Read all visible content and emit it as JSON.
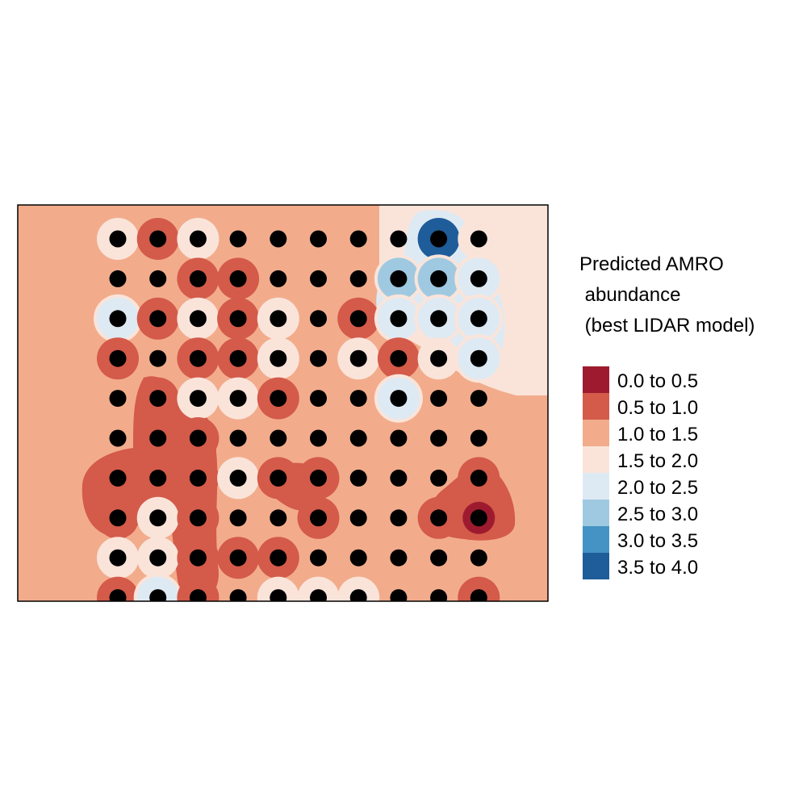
{
  "chart_data": {
    "type": "heatmap",
    "subtype": "interpolated abundance map with survey points",
    "title": "",
    "legend": {
      "placement": "right",
      "title_lines": [
        "Predicted AMRO",
        " abundance",
        " (best LIDAR model)"
      ],
      "classes": [
        {
          "label": "0.0 to 0.5",
          "min": 0.0,
          "max": 0.5,
          "color": "#9E1B2F"
        },
        {
          "label": "0.5 to 1.0",
          "min": 0.5,
          "max": 1.0,
          "color": "#D45A4A"
        },
        {
          "label": "1.0 to 1.5",
          "min": 1.0,
          "max": 1.5,
          "color": "#F2AC8C"
        },
        {
          "label": "1.5 to 2.0",
          "min": 1.5,
          "max": 2.0,
          "color": "#FAE4DA"
        },
        {
          "label": "2.0 to 2.5",
          "min": 2.0,
          "max": 2.5,
          "color": "#DEEAF3"
        },
        {
          "label": "2.5 to 3.0",
          "min": 2.5,
          "max": 3.0,
          "color": "#9FC9E1"
        },
        {
          "label": "3.0 to 3.5",
          "min": 3.0,
          "max": 3.5,
          "color": "#4592C4"
        },
        {
          "label": "3.5 to 4.0",
          "min": 3.5,
          "max": 4.0,
          "color": "#1F5C9A"
        }
      ]
    },
    "grid": false,
    "point_color": "#000000",
    "points": [
      {
        "col": 1,
        "row": 1,
        "v": 1.8
      },
      {
        "col": 2,
        "row": 1,
        "v": 0.8
      },
      {
        "col": 3,
        "row": 1,
        "v": 1.9
      },
      {
        "col": 4,
        "row": 1,
        "v": 1.2
      },
      {
        "col": 5,
        "row": 1,
        "v": 1.2
      },
      {
        "col": 6,
        "row": 1,
        "v": 1.2
      },
      {
        "col": 7,
        "row": 1,
        "v": 1.2
      },
      {
        "col": 8,
        "row": 1,
        "v": 1.3
      },
      {
        "col": 9,
        "row": 1,
        "v": 3.8
      },
      {
        "col": 10,
        "row": 1,
        "v": 1.6
      },
      {
        "col": 1,
        "row": 2,
        "v": 1.2
      },
      {
        "col": 2,
        "row": 2,
        "v": 1.2
      },
      {
        "col": 3,
        "row": 2,
        "v": 0.8
      },
      {
        "col": 4,
        "row": 2,
        "v": 0.6
      },
      {
        "col": 5,
        "row": 2,
        "v": 1.2
      },
      {
        "col": 6,
        "row": 2,
        "v": 1.2
      },
      {
        "col": 7,
        "row": 2,
        "v": 1.2
      },
      {
        "col": 8,
        "row": 2,
        "v": 2.6
      },
      {
        "col": 9,
        "row": 2,
        "v": 2.5
      },
      {
        "col": 10,
        "row": 2,
        "v": 2.1
      },
      {
        "col": 1,
        "row": 3,
        "v": 2.3
      },
      {
        "col": 2,
        "row": 3,
        "v": 0.6
      },
      {
        "col": 3,
        "row": 3,
        "v": 1.9
      },
      {
        "col": 4,
        "row": 3,
        "v": 0.6
      },
      {
        "col": 5,
        "row": 3,
        "v": 1.8
      },
      {
        "col": 6,
        "row": 3,
        "v": 1.2
      },
      {
        "col": 7,
        "row": 3,
        "v": 0.8
      },
      {
        "col": 8,
        "row": 3,
        "v": 2.2
      },
      {
        "col": 9,
        "row": 3,
        "v": 2.2
      },
      {
        "col": 10,
        "row": 3,
        "v": 2.2
      },
      {
        "col": 1,
        "row": 4,
        "v": 0.6
      },
      {
        "col": 2,
        "row": 4,
        "v": 1.2
      },
      {
        "col": 3,
        "row": 4,
        "v": 0.7
      },
      {
        "col": 4,
        "row": 4,
        "v": 0.6
      },
      {
        "col": 5,
        "row": 4,
        "v": 1.8
      },
      {
        "col": 6,
        "row": 4,
        "v": 1.2
      },
      {
        "col": 7,
        "row": 4,
        "v": 1.8
      },
      {
        "col": 8,
        "row": 4,
        "v": 0.8
      },
      {
        "col": 9,
        "row": 4,
        "v": 1.8
      },
      {
        "col": 10,
        "row": 4,
        "v": 2.3
      },
      {
        "col": 1,
        "row": 5,
        "v": 1.2
      },
      {
        "col": 2,
        "row": 5,
        "v": 0.6
      },
      {
        "col": 3,
        "row": 5,
        "v": 1.8
      },
      {
        "col": 4,
        "row": 5,
        "v": 1.9
      },
      {
        "col": 5,
        "row": 5,
        "v": 0.8
      },
      {
        "col": 6,
        "row": 5,
        "v": 1.2
      },
      {
        "col": 7,
        "row": 5,
        "v": 1.2
      },
      {
        "col": 8,
        "row": 5,
        "v": 2.1
      },
      {
        "col": 9,
        "row": 5,
        "v": 1.2
      },
      {
        "col": 10,
        "row": 5,
        "v": 1.3
      },
      {
        "col": 1,
        "row": 6,
        "v": 1.3
      },
      {
        "col": 2,
        "row": 6,
        "v": 0.8
      },
      {
        "col": 3,
        "row": 6,
        "v": 0.8
      },
      {
        "col": 4,
        "row": 6,
        "v": 1.2
      },
      {
        "col": 5,
        "row": 6,
        "v": 1.2
      },
      {
        "col": 6,
        "row": 6,
        "v": 1.2
      },
      {
        "col": 7,
        "row": 6,
        "v": 1.2
      },
      {
        "col": 8,
        "row": 6,
        "v": 1.2
      },
      {
        "col": 9,
        "row": 6,
        "v": 1.2
      },
      {
        "col": 10,
        "row": 6,
        "v": 1.2
      },
      {
        "col": 1,
        "row": 7,
        "v": 0.6
      },
      {
        "col": 2,
        "row": 7,
        "v": 0.6
      },
      {
        "col": 3,
        "row": 7,
        "v": 0.6
      },
      {
        "col": 4,
        "row": 7,
        "v": 1.9
      },
      {
        "col": 5,
        "row": 7,
        "v": 0.6
      },
      {
        "col": 6,
        "row": 7,
        "v": 0.6
      },
      {
        "col": 7,
        "row": 7,
        "v": 1.2
      },
      {
        "col": 8,
        "row": 7,
        "v": 1.2
      },
      {
        "col": 9,
        "row": 7,
        "v": 1.2
      },
      {
        "col": 10,
        "row": 7,
        "v": 0.8
      },
      {
        "col": 1,
        "row": 8,
        "v": 0.6
      },
      {
        "col": 2,
        "row": 8,
        "v": 1.9
      },
      {
        "col": 3,
        "row": 8,
        "v": 0.7
      },
      {
        "col": 4,
        "row": 8,
        "v": 1.2
      },
      {
        "col": 5,
        "row": 8,
        "v": 1.2
      },
      {
        "col": 6,
        "row": 8,
        "v": 0.8
      },
      {
        "col": 7,
        "row": 8,
        "v": 1.2
      },
      {
        "col": 8,
        "row": 8,
        "v": 1.2
      },
      {
        "col": 9,
        "row": 8,
        "v": 0.7
      },
      {
        "col": 10,
        "row": 8,
        "v": 0.3
      },
      {
        "col": 1,
        "row": 9,
        "v": 1.8
      },
      {
        "col": 2,
        "row": 9,
        "v": 1.9
      },
      {
        "col": 3,
        "row": 9,
        "v": 0.6
      },
      {
        "col": 4,
        "row": 9,
        "v": 0.6
      },
      {
        "col": 5,
        "row": 9,
        "v": 0.7
      },
      {
        "col": 6,
        "row": 9,
        "v": 1.2
      },
      {
        "col": 7,
        "row": 9,
        "v": 1.2
      },
      {
        "col": 8,
        "row": 9,
        "v": 1.2
      },
      {
        "col": 9,
        "row": 9,
        "v": 1.2
      },
      {
        "col": 10,
        "row": 9,
        "v": 1.2
      },
      {
        "col": 1,
        "row": 10,
        "v": 0.6
      },
      {
        "col": 2,
        "row": 10,
        "v": 2.3
      },
      {
        "col": 3,
        "row": 10,
        "v": 0.6
      },
      {
        "col": 4,
        "row": 10,
        "v": 1.2
      },
      {
        "col": 5,
        "row": 10,
        "v": 1.8
      },
      {
        "col": 6,
        "row": 10,
        "v": 1.8
      },
      {
        "col": 7,
        "row": 10,
        "v": 1.8
      },
      {
        "col": 8,
        "row": 10,
        "v": 1.2
      },
      {
        "col": 9,
        "row": 10,
        "v": 1.2
      },
      {
        "col": 10,
        "row": 10,
        "v": 0.7
      }
    ],
    "regions": [
      {
        "class": "1.5 to 2.0",
        "area": "northeast corner"
      },
      {
        "class": "2.0 to 2.5",
        "area": "northeast cluster"
      },
      {
        "class": "0.5 to 1.0",
        "area": "southwest block"
      },
      {
        "class": "0.5 to 1.0",
        "area": "southeast patch"
      }
    ]
  }
}
